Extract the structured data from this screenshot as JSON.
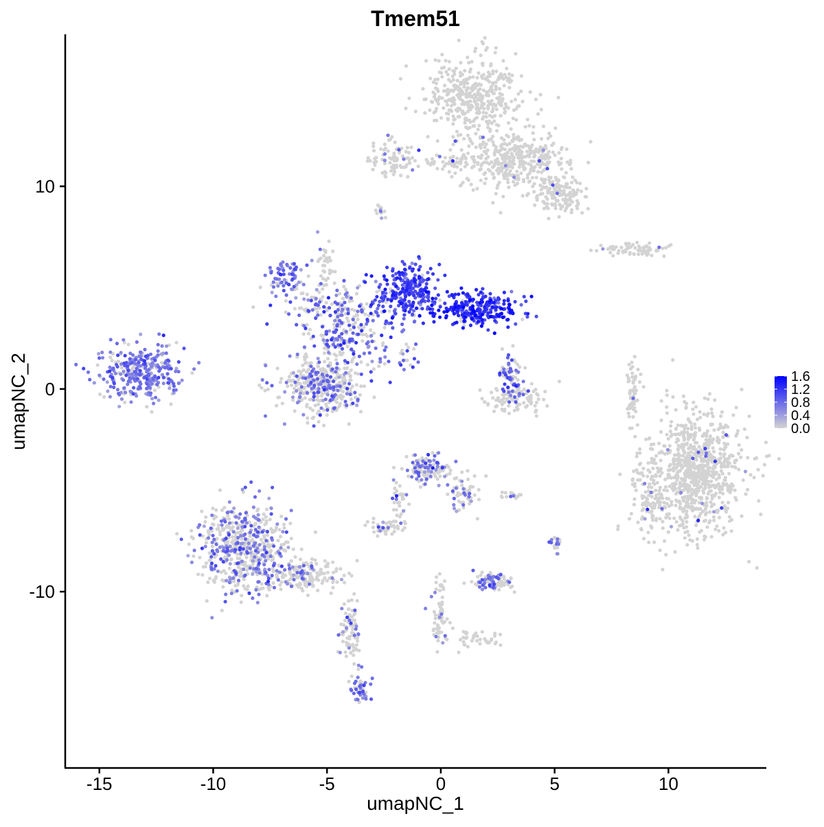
{
  "chart_data": {
    "type": "scatter",
    "title": "Tmem51",
    "xlabel": "umapNC_1",
    "ylabel": "umapNC_2",
    "xlim": [
      -16.5,
      14.3
    ],
    "ylim": [
      -18.7,
      17.5
    ],
    "x_ticks": [
      -15,
      -10,
      -5,
      0,
      5,
      10
    ],
    "x_tick_labels": [
      "-15",
      "-10",
      "-5",
      "0",
      "5",
      "10"
    ],
    "y_ticks": [
      -10,
      0,
      10
    ],
    "y_tick_labels": [
      "-10",
      "0",
      "10"
    ],
    "grid": false,
    "legend": {
      "placement": "right",
      "type": "colorbar",
      "min": 0.0,
      "max": 1.6,
      "ticks": [
        0.0,
        0.4,
        0.8,
        1.2,
        1.6
      ],
      "tick_labels": [
        "0.0",
        "0.4",
        "0.8",
        "1.2",
        "1.6"
      ],
      "colors": [
        "#d3d3d3",
        "#0000ff"
      ]
    },
    "point_size": 2.6,
    "background_color": "#d3d3d3",
    "clusters": [
      {
        "x": 1.5,
        "y": 14.5,
        "sx": 1.4,
        "sy": 1.3,
        "n": 420,
        "expr_frac": 0.01,
        "expr_mean": 0.7
      },
      {
        "x": 3.2,
        "y": 11.3,
        "sx": 1.5,
        "sy": 0.9,
        "n": 380,
        "expr_frac": 0.02,
        "expr_mean": 0.7
      },
      {
        "x": 5.2,
        "y": 9.6,
        "sx": 0.8,
        "sy": 0.7,
        "n": 150,
        "expr_frac": 0.03,
        "expr_mean": 0.7
      },
      {
        "x": -2.0,
        "y": 11.4,
        "sx": 0.7,
        "sy": 0.6,
        "n": 80,
        "expr_frac": 0.08,
        "expr_mean": 0.7
      },
      {
        "x": 0.5,
        "y": 11.2,
        "sx": 1.0,
        "sy": 0.3,
        "n": 50,
        "expr_frac": 0.08,
        "expr_mean": 0.7
      },
      {
        "x": -2.7,
        "y": 8.8,
        "sx": 0.15,
        "sy": 0.3,
        "n": 12,
        "expr_frac": 0.2,
        "expr_mean": 0.7
      },
      {
        "x": 8.6,
        "y": 6.9,
        "sx": 1.0,
        "sy": 0.25,
        "n": 70,
        "expr_frac": 0.02,
        "expr_mean": 0.7
      },
      {
        "x": 11.2,
        "y": -4.2,
        "sx": 1.5,
        "sy": 2.0,
        "n": 900,
        "expr_frac": 0.015,
        "expr_mean": 0.7
      },
      {
        "x": 9.2,
        "y": -5.5,
        "sx": 0.5,
        "sy": 1.0,
        "n": 60,
        "expr_frac": 0.08,
        "expr_mean": 0.7
      },
      {
        "x": 8.4,
        "y": -0.2,
        "sx": 0.2,
        "sy": 1.0,
        "n": 60,
        "expr_frac": 0.02,
        "expr_mean": 0.7
      },
      {
        "x": -1.5,
        "y": 4.8,
        "sx": 0.8,
        "sy": 0.9,
        "n": 280,
        "expr_frac": 0.9,
        "expr_mean": 1.05
      },
      {
        "x": 1.6,
        "y": 3.9,
        "sx": 1.3,
        "sy": 0.55,
        "n": 280,
        "expr_frac": 0.9,
        "expr_mean": 1.2
      },
      {
        "x": -6.8,
        "y": 5.5,
        "sx": 0.6,
        "sy": 0.5,
        "n": 70,
        "expr_frac": 0.85,
        "expr_mean": 0.7
      },
      {
        "x": -4.5,
        "y": 4.0,
        "sx": 1.6,
        "sy": 0.7,
        "n": 170,
        "expr_frac": 0.5,
        "expr_mean": 0.8
      },
      {
        "x": -4.2,
        "y": 2.5,
        "sx": 1.2,
        "sy": 0.8,
        "n": 130,
        "expr_frac": 0.45,
        "expr_mean": 0.9
      },
      {
        "x": -5.2,
        "y": 0.2,
        "sx": 1.2,
        "sy": 1.0,
        "n": 380,
        "expr_frac": 0.35,
        "expr_mean": 0.7
      },
      {
        "x": -5.0,
        "y": 6.0,
        "sx": 0.3,
        "sy": 1.0,
        "n": 40,
        "expr_frac": 0.15,
        "expr_mean": 0.7
      },
      {
        "x": -1.9,
        "y": 1.5,
        "sx": 0.7,
        "sy": 0.5,
        "n": 30,
        "expr_frac": 0.6,
        "expr_mean": 0.8
      },
      {
        "x": -13.3,
        "y": 0.8,
        "sx": 1.2,
        "sy": 0.9,
        "n": 330,
        "expr_frac": 0.75,
        "expr_mean": 0.7
      },
      {
        "x": 3.0,
        "y": 0.7,
        "sx": 0.4,
        "sy": 0.7,
        "n": 80,
        "expr_frac": 0.55,
        "expr_mean": 0.9
      },
      {
        "x": 3.4,
        "y": -0.5,
        "sx": 0.9,
        "sy": 0.5,
        "n": 100,
        "expr_frac": 0.08,
        "expr_mean": 0.7
      },
      {
        "x": -8.6,
        "y": -7.8,
        "sx": 1.3,
        "sy": 1.4,
        "n": 600,
        "expr_frac": 0.4,
        "expr_mean": 0.7
      },
      {
        "x": -5.8,
        "y": -9.2,
        "sx": 1.0,
        "sy": 0.5,
        "n": 150,
        "expr_frac": 0.1,
        "expr_mean": 0.7
      },
      {
        "x": -4.0,
        "y": -12.0,
        "sx": 0.3,
        "sy": 1.2,
        "n": 80,
        "expr_frac": 0.15,
        "expr_mean": 0.7
      },
      {
        "x": -3.5,
        "y": -14.8,
        "sx": 0.25,
        "sy": 0.4,
        "n": 45,
        "expr_frac": 0.7,
        "expr_mean": 0.7
      },
      {
        "x": -0.6,
        "y": -3.9,
        "sx": 0.6,
        "sy": 0.5,
        "n": 140,
        "expr_frac": 0.35,
        "expr_mean": 0.7
      },
      {
        "x": 0.9,
        "y": -5.0,
        "sx": 0.5,
        "sy": 0.6,
        "n": 60,
        "expr_frac": 0.3,
        "expr_mean": 0.7
      },
      {
        "x": -2.5,
        "y": -6.9,
        "sx": 0.5,
        "sy": 0.2,
        "n": 40,
        "expr_frac": 0.2,
        "expr_mean": 0.7
      },
      {
        "x": -1.8,
        "y": -5.7,
        "sx": 0.3,
        "sy": 0.7,
        "n": 35,
        "expr_frac": 0.1,
        "expr_mean": 0.7
      },
      {
        "x": 2.3,
        "y": -9.5,
        "sx": 0.6,
        "sy": 0.3,
        "n": 90,
        "expr_frac": 0.4,
        "expr_mean": 0.7
      },
      {
        "x": 0.0,
        "y": -11.0,
        "sx": 0.3,
        "sy": 1.2,
        "n": 60,
        "expr_frac": 0.15,
        "expr_mean": 0.7
      },
      {
        "x": 1.6,
        "y": -12.3,
        "sx": 0.9,
        "sy": 0.3,
        "n": 40,
        "expr_frac": 0.05,
        "expr_mean": 0.7
      },
      {
        "x": 5.0,
        "y": -7.6,
        "sx": 0.2,
        "sy": 0.3,
        "n": 18,
        "expr_frac": 0.6,
        "expr_mean": 0.7
      },
      {
        "x": 2.9,
        "y": -5.2,
        "sx": 0.5,
        "sy": 0.1,
        "n": 14,
        "expr_frac": 0.05,
        "expr_mean": 0.7
      }
    ]
  }
}
